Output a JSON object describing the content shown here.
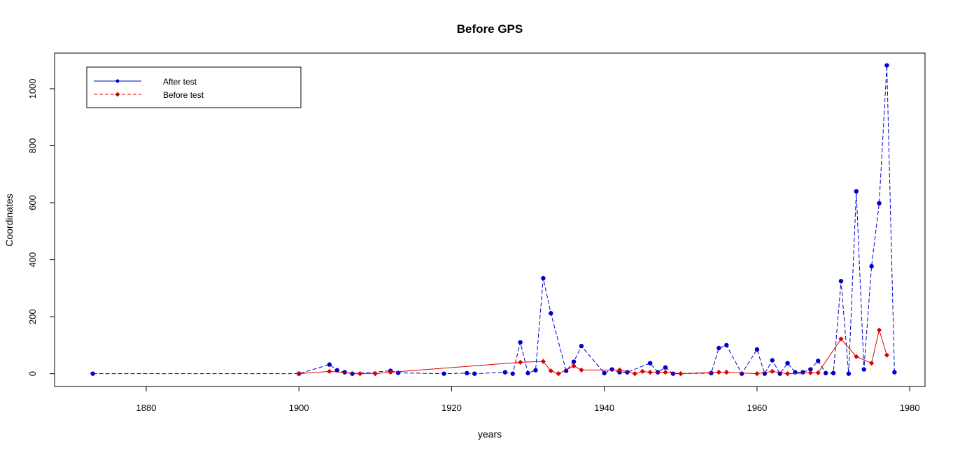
{
  "chart_data": {
    "type": "line",
    "title": "Before GPS",
    "xlabel": "years",
    "ylabel": "Coordinates",
    "xlim": [
      1868,
      1982
    ],
    "ylim": [
      -45,
      1125
    ],
    "x_ticks": [
      1880,
      1900,
      1920,
      1940,
      1960,
      1980
    ],
    "y_ticks": [
      0,
      200,
      400,
      600,
      800,
      1000
    ],
    "grid": false,
    "legend_position": "top-left",
    "series": [
      {
        "name": "After test",
        "color": "#0000cd",
        "marker": "circle",
        "points": [
          [
            1873,
            0
          ],
          [
            1900,
            0
          ],
          [
            1904,
            32
          ],
          [
            1905,
            12
          ],
          [
            1906,
            5
          ],
          [
            1907,
            0
          ],
          [
            1912,
            10
          ],
          [
            1913,
            3
          ],
          [
            1919,
            0
          ],
          [
            1922,
            2
          ],
          [
            1923,
            0
          ],
          [
            1927,
            5
          ],
          [
            1928,
            0
          ],
          [
            1929,
            110
          ],
          [
            1930,
            2
          ],
          [
            1931,
            12
          ],
          [
            1932,
            335
          ],
          [
            1933,
            212
          ],
          [
            1935,
            10
          ],
          [
            1936,
            42
          ],
          [
            1937,
            97
          ],
          [
            1940,
            2
          ],
          [
            1941,
            15
          ],
          [
            1942,
            5
          ],
          [
            1943,
            5
          ],
          [
            1946,
            37
          ],
          [
            1947,
            5
          ],
          [
            1948,
            22
          ],
          [
            1949,
            0
          ],
          [
            1954,
            2
          ],
          [
            1955,
            90
          ],
          [
            1956,
            100
          ],
          [
            1958,
            0
          ],
          [
            1960,
            85
          ],
          [
            1961,
            0
          ],
          [
            1962,
            47
          ],
          [
            1963,
            0
          ],
          [
            1964,
            37
          ],
          [
            1965,
            5
          ],
          [
            1966,
            5
          ],
          [
            1967,
            15
          ],
          [
            1968,
            45
          ],
          [
            1969,
            2
          ],
          [
            1970,
            2
          ],
          [
            1971,
            325
          ],
          [
            1972,
            0
          ],
          [
            1973,
            640
          ],
          [
            1974,
            15
          ],
          [
            1975,
            377
          ],
          [
            1976,
            598
          ],
          [
            1977,
            1082
          ],
          [
            1978,
            5
          ]
        ]
      },
      {
        "name": "Before test",
        "color": "#dd0000",
        "marker": "diamond",
        "points": [
          [
            1900,
            0
          ],
          [
            1904,
            8
          ],
          [
            1908,
            0
          ],
          [
            1910,
            0
          ],
          [
            1912,
            5
          ],
          [
            1929,
            40
          ],
          [
            1932,
            43
          ],
          [
            1933,
            10
          ],
          [
            1934,
            0
          ],
          [
            1936,
            27
          ],
          [
            1937,
            13
          ],
          [
            1942,
            13
          ],
          [
            1944,
            0
          ],
          [
            1945,
            8
          ],
          [
            1946,
            5
          ],
          [
            1948,
            5
          ],
          [
            1950,
            0
          ],
          [
            1955,
            5
          ],
          [
            1956,
            5
          ],
          [
            1960,
            0
          ],
          [
            1962,
            8
          ],
          [
            1964,
            0
          ],
          [
            1967,
            3
          ],
          [
            1968,
            3
          ],
          [
            1971,
            122
          ],
          [
            1973,
            60
          ],
          [
            1975,
            37
          ],
          [
            1976,
            153
          ],
          [
            1977,
            65
          ]
        ]
      }
    ]
  }
}
